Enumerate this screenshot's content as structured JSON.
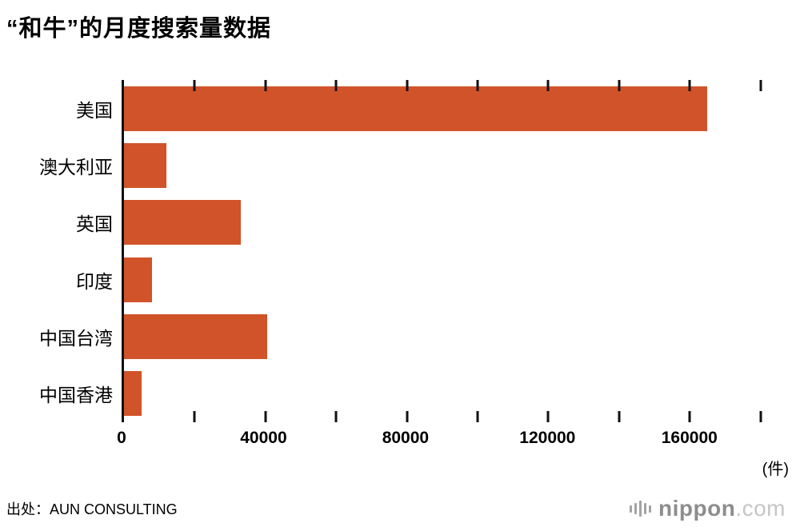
{
  "chart_data": {
    "type": "bar",
    "orientation": "horizontal",
    "title": "“和牛”的月度搜索量数据",
    "categories": [
      "美国",
      "澳大利亚",
      "英国",
      "印度",
      "中国台湾",
      "中国香港"
    ],
    "values": [
      165000,
      12000,
      33000,
      8000,
      40500,
      5000
    ],
    "unit": "(件)",
    "bar_color": "#d1532a",
    "legend": "none",
    "grid": "off",
    "axis": {
      "xmin": 0,
      "xmax": 188000,
      "tick_values": [
        0,
        40000,
        80000,
        120000,
        160000
      ],
      "tick_labels": [
        "0",
        "40000",
        "80000",
        "120000",
        "160000"
      ],
      "minor_tick_values": [
        20000,
        60000,
        100000,
        140000,
        180000
      ]
    }
  },
  "footer": {
    "source": "出处：AUN CONSULTING",
    "logo_name": "nippon",
    "logo_tld": ".com"
  }
}
